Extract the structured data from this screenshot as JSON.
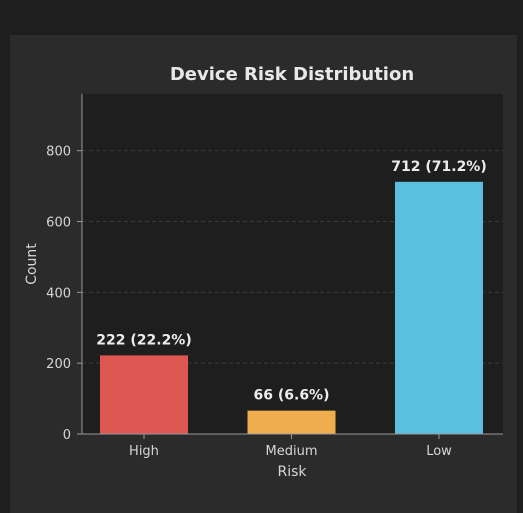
{
  "chart_data": {
    "type": "bar",
    "title": "Device Risk Distribution",
    "xlabel": "Risk",
    "ylabel": "Count",
    "categories": [
      "High",
      "Medium",
      "Low"
    ],
    "values": [
      222,
      66,
      712
    ],
    "data_labels": [
      "222 (22.2%)",
      "66 (6.6%)",
      "712 (71.2%)"
    ],
    "colors": [
      "#dd5651",
      "#f0ad4e",
      "#5bc0de"
    ],
    "ylim": [
      0,
      960
    ],
    "yticks": [
      0,
      200,
      400,
      600,
      800
    ],
    "grid": true
  },
  "colors": {
    "page_bg": "#1e1e1e",
    "panel_bg": "#2b2b2b",
    "plot_bg": "#1e1e1e"
  }
}
